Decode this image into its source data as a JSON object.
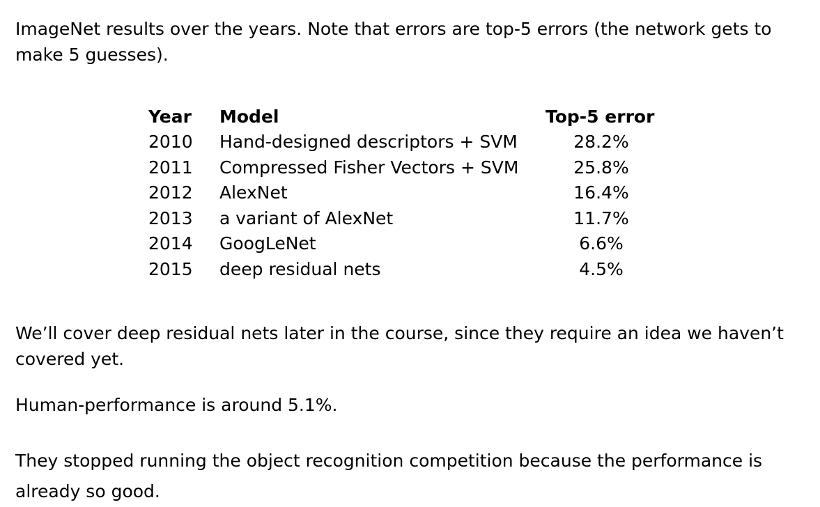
{
  "intro": "ImageNet results over the years. Note that errors are top-5 errors (the network gets to make 5 guesses).",
  "table": {
    "headers": {
      "year": "Year",
      "model": "Model",
      "error": "Top-5 error"
    },
    "rows": [
      {
        "year": "2010",
        "model": "Hand-designed descriptors + SVM",
        "error": "28.2%"
      },
      {
        "year": "2011",
        "model": "Compressed Fisher Vectors + SVM",
        "error": "25.8%"
      },
      {
        "year": "2012",
        "model": "AlexNet",
        "error": "16.4%"
      },
      {
        "year": "2013",
        "model": "a variant of AlexNet",
        "error": "11.7%"
      },
      {
        "year": "2014",
        "model": "GoogLeNet",
        "error": "6.6%"
      },
      {
        "year": "2015",
        "model": "deep residual nets",
        "error": "4.5%"
      }
    ]
  },
  "notes": {
    "residual": "We’ll cover deep residual nets later in the course, since they require an idea we haven’t covered yet.",
    "human": "Human-performance is around 5.1%.",
    "competition": "They stopped running the object recognition competition because the performance is already so good."
  }
}
